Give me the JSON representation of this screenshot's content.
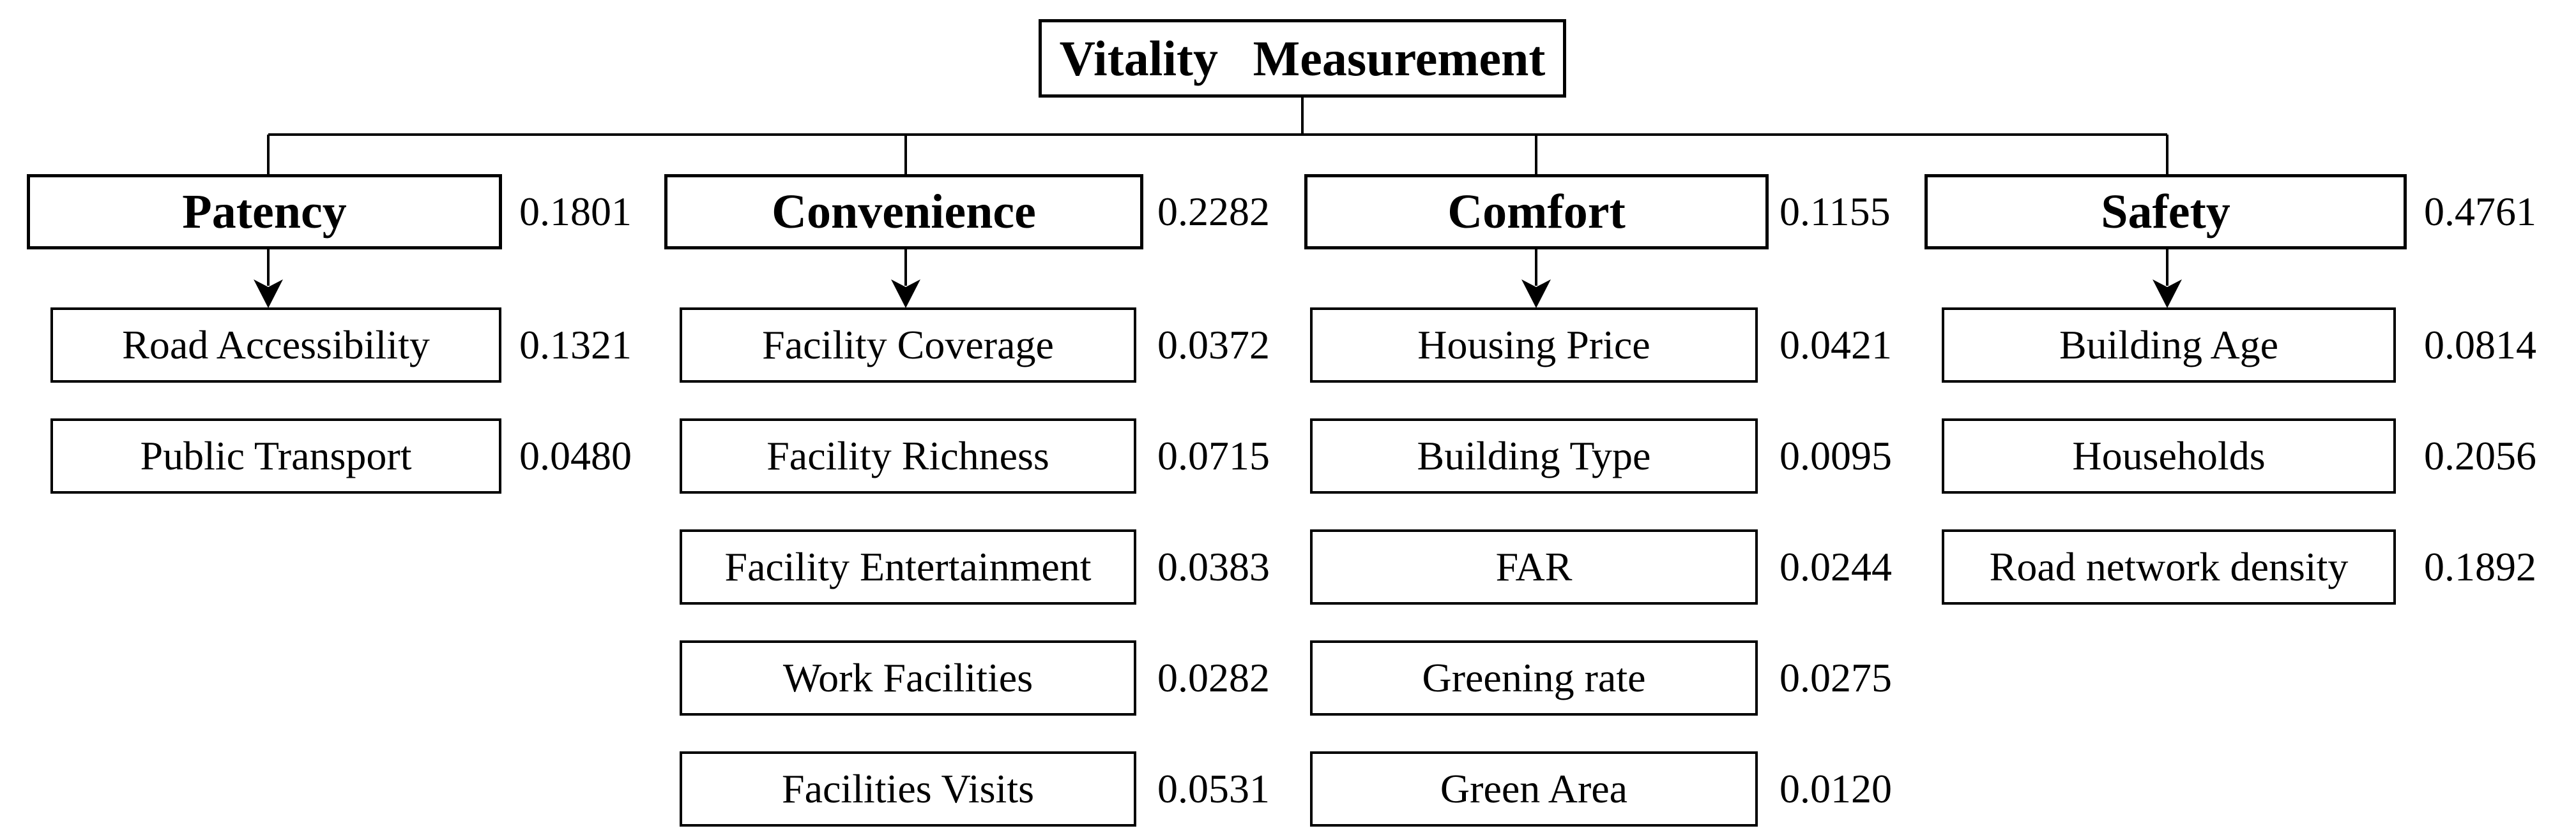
{
  "title": "Vitality Measurement",
  "columns": [
    {
      "label": "Patency",
      "weight": "0.1801",
      "children": [
        {
          "label": "Road Accessibility",
          "weight": "0.1321"
        },
        {
          "label": "Public Transport",
          "weight": "0.0480"
        }
      ]
    },
    {
      "label": "Convenience",
      "weight": "0.2282",
      "children": [
        {
          "label": "Facility Coverage",
          "weight": "0.0372"
        },
        {
          "label": "Facility Richness",
          "weight": "0.0715"
        },
        {
          "label": "Facility Entertainment",
          "weight": "0.0383"
        },
        {
          "label": "Work Facilities",
          "weight": "0.0282"
        },
        {
          "label": "Facilities Visits",
          "weight": "0.0531"
        }
      ]
    },
    {
      "label": "Comfort",
      "weight": "0.1155",
      "children": [
        {
          "label": "Housing Price",
          "weight": "0.0421"
        },
        {
          "label": "Building Type",
          "weight": "0.0095"
        },
        {
          "label": "FAR",
          "weight": "0.0244"
        },
        {
          "label": "Greening rate",
          "weight": "0.0275"
        },
        {
          "label": "Green Area",
          "weight": "0.0120"
        }
      ]
    },
    {
      "label": "Safety",
      "weight": "0.4761",
      "children": [
        {
          "label": "Building Age",
          "weight": "0.0814"
        },
        {
          "label": "Households",
          "weight": "0.2056"
        },
        {
          "label": "Road network density",
          "weight": "0.1892"
        }
      ]
    }
  ],
  "colors": {
    "background": "#ffffff",
    "line": "#000000",
    "border": "#000000",
    "text": "#000000"
  }
}
